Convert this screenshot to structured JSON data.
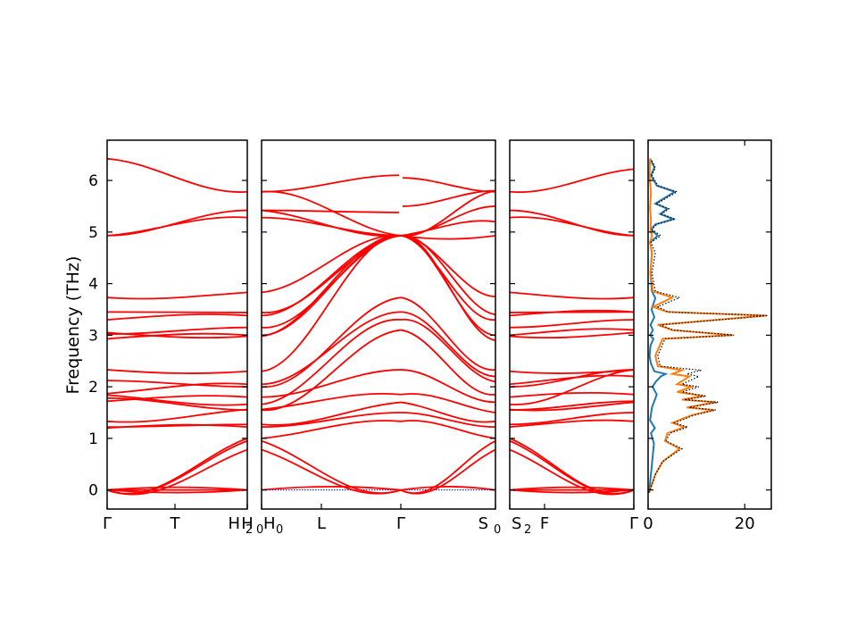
{
  "chart_data": {
    "type": "line",
    "ylabel": "Frequency (THz)",
    "ylim": [
      -0.37,
      6.78
    ],
    "yticks": [
      0,
      1,
      2,
      3,
      4,
      5,
      6
    ],
    "band_color": "#ff0000",
    "zero_line_color": "#0000cc",
    "panels": [
      {
        "id": "p1",
        "xticks": [
          "Γ",
          "T",
          "H",
          "H"
        ],
        "xtick_subscripts": [
          "",
          "",
          "2",
          "0"
        ],
        "band_endpoints": [
          [
            0.0,
            0.0
          ],
          [
            0.0,
            0.0
          ],
          [
            0.0,
            0.0
          ],
          [
            0.0,
            0.95
          ],
          [
            0.0,
            0.78
          ],
          [
            0.0,
            1.0
          ],
          [
            1.2,
            1.22
          ],
          [
            1.22,
            1.27
          ],
          [
            1.33,
            1.56
          ],
          [
            1.72,
            1.8
          ],
          [
            1.78,
            1.55
          ],
          [
            1.84,
            1.66
          ],
          [
            1.87,
            2.05
          ],
          [
            2.12,
            2.0
          ],
          [
            2.33,
            2.3
          ],
          [
            2.93,
            3.0
          ],
          [
            3.02,
            3.15
          ],
          [
            3.05,
            2.98
          ],
          [
            3.3,
            3.38
          ],
          [
            3.45,
            3.44
          ],
          [
            3.73,
            3.83
          ],
          [
            4.93,
            5.28
          ],
          [
            4.93,
            5.42
          ],
          [
            6.42,
            5.78
          ]
        ]
      },
      {
        "id": "p2",
        "xticks": [
          "H",
          "L",
          "Γ",
          "S"
        ],
        "xtick_subscripts": [
          "0",
          "",
          "",
          "0"
        ],
        "gamma_values_low": [
          0.0,
          0.0,
          0.0,
          1.33,
          1.5,
          1.7,
          1.85,
          2.33,
          3.1,
          3.3,
          3.45,
          3.73,
          4.93
        ],
        "gamma_values_high": [
          5.38,
          5.5,
          6.1,
          6.05
        ]
      },
      {
        "id": "p3",
        "xticks": [
          "S",
          "F",
          "Γ"
        ],
        "xtick_subscripts": [
          "2",
          "",
          ""
        ],
        "band_endpoints": [
          [
            0.0,
            0.0
          ],
          [
            0.0,
            0.0
          ],
          [
            0.0,
            0.0
          ],
          [
            0.95,
            0.0
          ],
          [
            0.78,
            0.0
          ],
          [
            1.0,
            0.0
          ],
          [
            1.22,
            1.33
          ],
          [
            1.27,
            1.5
          ],
          [
            1.56,
            1.7
          ],
          [
            1.8,
            1.85
          ],
          [
            1.55,
            1.72
          ],
          [
            1.66,
            2.33
          ],
          [
            2.05,
            2.2
          ],
          [
            2.0,
            2.33
          ],
          [
            2.3,
            2.33
          ],
          [
            3.0,
            3.1
          ],
          [
            3.15,
            3.3
          ],
          [
            2.98,
            3.05
          ],
          [
            3.38,
            3.45
          ],
          [
            3.44,
            3.45
          ],
          [
            3.83,
            3.73
          ],
          [
            5.28,
            4.93
          ],
          [
            5.42,
            4.93
          ],
          [
            5.78,
            6.22
          ]
        ]
      }
    ],
    "dos": {
      "xlabel": "",
      "xlim": [
        0,
        25.5
      ],
      "xticks": [
        0,
        20
      ],
      "series": [
        {
          "color": "#1f77b4",
          "style": "solid",
          "points": [
            [
              0.2,
              -0.05
            ],
            [
              0.8,
              0.5
            ],
            [
              1.2,
              0.9
            ],
            [
              0.6,
              1.1
            ],
            [
              1.4,
              1.2
            ],
            [
              0.4,
              1.35
            ],
            [
              0.8,
              1.6
            ],
            [
              1.8,
              1.85
            ],
            [
              0.9,
              2.0
            ],
            [
              1.6,
              2.1
            ],
            [
              2.6,
              2.2
            ],
            [
              3.6,
              2.25
            ],
            [
              1.3,
              2.3
            ],
            [
              0.6,
              2.45
            ],
            [
              0.3,
              2.6
            ],
            [
              0.5,
              2.8
            ],
            [
              1.1,
              2.93
            ],
            [
              0.4,
              3.0
            ],
            [
              1.0,
              3.1
            ],
            [
              0.5,
              3.2
            ],
            [
              1.3,
              3.35
            ],
            [
              0.7,
              3.5
            ],
            [
              1.5,
              3.72
            ],
            [
              0.8,
              3.85
            ],
            [
              0.5,
              4.2
            ],
            [
              0.8,
              4.6
            ],
            [
              0.4,
              4.8
            ],
            [
              2.0,
              4.93
            ],
            [
              0.6,
              5.05
            ],
            [
              1.5,
              5.15
            ],
            [
              5.2,
              5.25
            ],
            [
              2.5,
              5.35
            ],
            [
              4.0,
              5.45
            ],
            [
              1.5,
              5.55
            ],
            [
              5.5,
              5.78
            ],
            [
              1.8,
              5.9
            ],
            [
              0.6,
              6.1
            ],
            [
              1.3,
              6.25
            ],
            [
              0.4,
              6.42
            ]
          ]
        },
        {
          "color": "#ff7f0e",
          "style": "solid",
          "points": [
            [
              0.2,
              -0.05
            ],
            [
              1.5,
              0.3
            ],
            [
              3.0,
              0.55
            ],
            [
              6.5,
              0.8
            ],
            [
              3.5,
              0.95
            ],
            [
              4.0,
              1.1
            ],
            [
              7.5,
              1.22
            ],
            [
              5.0,
              1.3
            ],
            [
              9.0,
              1.45
            ],
            [
              13.5,
              1.55
            ],
            [
              8.0,
              1.6
            ],
            [
              14.0,
              1.7
            ],
            [
              7.0,
              1.75
            ],
            [
              11.5,
              1.82
            ],
            [
              6.0,
              1.9
            ],
            [
              9.0,
              2.0
            ],
            [
              6.0,
              2.05
            ],
            [
              8.5,
              2.2
            ],
            [
              5.0,
              2.25
            ],
            [
              7.0,
              2.32
            ],
            [
              2.0,
              2.4
            ],
            [
              1.5,
              2.6
            ],
            [
              3.0,
              2.93
            ],
            [
              17.5,
              3.0
            ],
            [
              5.0,
              3.1
            ],
            [
              2.0,
              3.2
            ],
            [
              24.5,
              3.38
            ],
            [
              4.0,
              3.45
            ],
            [
              1.0,
              3.55
            ],
            [
              5.0,
              3.73
            ],
            [
              1.0,
              3.85
            ],
            [
              0.5,
              4.2
            ],
            [
              0.8,
              4.6
            ],
            [
              0.4,
              4.8
            ],
            [
              0.8,
              4.93
            ],
            [
              0.5,
              5.05
            ],
            [
              0.6,
              5.25
            ],
            [
              0.4,
              5.45
            ],
            [
              0.6,
              5.78
            ],
            [
              0.3,
              6.1
            ],
            [
              0.4,
              6.42
            ]
          ]
        },
        {
          "color": "#000000",
          "style": "dotted",
          "points": [
            [
              0.2,
              -0.05
            ],
            [
              1.5,
              0.3
            ],
            [
              3.0,
              0.55
            ],
            [
              7.0,
              0.8
            ],
            [
              3.7,
              0.95
            ],
            [
              4.5,
              1.1
            ],
            [
              8.2,
              1.22
            ],
            [
              5.5,
              1.3
            ],
            [
              9.5,
              1.45
            ],
            [
              14.0,
              1.55
            ],
            [
              8.5,
              1.6
            ],
            [
              14.5,
              1.7
            ],
            [
              7.5,
              1.75
            ],
            [
              12.0,
              1.82
            ],
            [
              7.0,
              1.9
            ],
            [
              10.5,
              2.0
            ],
            [
              7.0,
              2.05
            ],
            [
              10.5,
              2.2
            ],
            [
              8.0,
              2.25
            ],
            [
              11.0,
              2.32
            ],
            [
              2.5,
              2.4
            ],
            [
              2.0,
              2.6
            ],
            [
              3.5,
              2.93
            ],
            [
              17.8,
              3.0
            ],
            [
              5.2,
              3.1
            ],
            [
              2.5,
              3.2
            ],
            [
              24.8,
              3.38
            ],
            [
              4.2,
              3.45
            ],
            [
              2.0,
              3.55
            ],
            [
              6.5,
              3.73
            ],
            [
              1.5,
              3.85
            ],
            [
              0.8,
              4.2
            ],
            [
              1.5,
              4.6
            ],
            [
              0.6,
              4.8
            ],
            [
              2.6,
              4.93
            ],
            [
              0.8,
              5.05
            ],
            [
              1.8,
              5.15
            ],
            [
              5.6,
              5.25
            ],
            [
              2.8,
              5.35
            ],
            [
              4.3,
              5.45
            ],
            [
              1.8,
              5.55
            ],
            [
              6.0,
              5.78
            ],
            [
              2.0,
              5.9
            ],
            [
              0.8,
              6.1
            ],
            [
              1.5,
              6.25
            ],
            [
              0.6,
              6.42
            ]
          ]
        }
      ]
    }
  }
}
